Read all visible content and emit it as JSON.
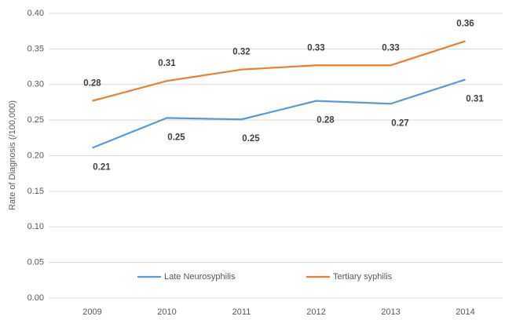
{
  "chart_data": {
    "type": "line",
    "y_label": "Rate of Diagnosis (/100,000)",
    "categories": [
      "2009",
      "2010",
      "2011",
      "2012",
      "2013",
      "2014"
    ],
    "series": [
      {
        "name": "Late Neurosyphilis",
        "color": "#5b9bd5",
        "values": [
          0.211,
          0.253,
          0.251,
          0.277,
          0.273,
          0.307
        ],
        "value_labels": [
          "0.21",
          "0.25",
          "0.25",
          "0.28",
          "0.27",
          "0.31"
        ],
        "label_position": "below"
      },
      {
        "name": "Tertiary syphilis",
        "color": "#ed7d31",
        "values": [
          0.277,
          0.305,
          0.321,
          0.327,
          0.327,
          0.361
        ],
        "value_labels": [
          "0.28",
          "0.31",
          "0.32",
          "0.33",
          "0.33",
          "0.36"
        ],
        "label_position": "above"
      }
    ],
    "ylim": [
      0,
      0.4
    ],
    "yticks": [
      {
        "value": 0,
        "label": "0.00"
      },
      0.05,
      {
        "value": 0.1,
        "label": "0.10"
      },
      0.15,
      {
        "value": 0.2,
        "label": "0.20"
      },
      0.25,
      {
        "value": 0.3,
        "label": "0.30"
      },
      0.35,
      {
        "value": 0.4,
        "label": "0.40"
      }
    ],
    "grid": true,
    "legend": "bottom"
  }
}
